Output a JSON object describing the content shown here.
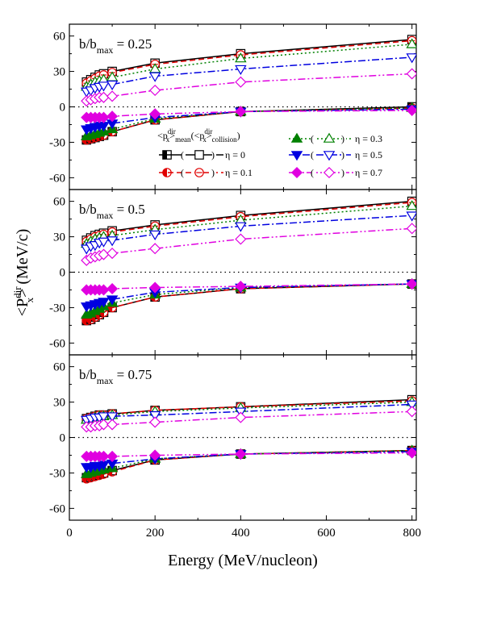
{
  "chart_data": {
    "type": "line",
    "xlabel": "Energy (MeV/nucleon)",
    "ylabel_main": "<P",
    "ylabel_sup": "dir",
    "ylabel_sub": "x",
    "ylabel_tail": "> (MeV/c)",
    "xlim": [
      0,
      810
    ],
    "ylim": [
      -70,
      70
    ],
    "x_ticks": [
      0,
      200,
      400,
      600,
      800
    ],
    "y_ticks": [
      -60,
      -30,
      0,
      30,
      60
    ],
    "x": [
      40,
      50,
      60,
      70,
      80,
      100,
      200,
      400,
      800
    ],
    "legend": {
      "mean_main": "<p",
      "mean_sup": "dir",
      "mean_sub_x": "x",
      "mean_tail": ">",
      "mean_sub_tail": "mean",
      "coll_open": "(<p",
      "coll_sup": "dir",
      "coll_sub_x": "x",
      "coll_tail": ">",
      "coll_sub_tail": "collision",
      "coll_close": ")",
      "series_labels": [
        "η = 0",
        "η = 0.1",
        "η = 0.3",
        "η = 0.5",
        "η = 0.7"
      ]
    },
    "series_styles": [
      {
        "color": "#000000",
        "marker": "square",
        "dash": ""
      },
      {
        "color": "#e00000",
        "marker": "circle",
        "dash": "7,4"
      },
      {
        "color": "#008000",
        "marker": "triangle",
        "dash": "2,3"
      },
      {
        "color": "#0000e0",
        "marker": "triangle-down",
        "dash": "9,3,2,3"
      },
      {
        "color": "#e000e0",
        "marker": "diamond",
        "dash": "9,3,2,3,2,3"
      }
    ],
    "panels": [
      {
        "label_pre": "b/b",
        "label_sub": "max",
        "label_post": " = 0.25",
        "collision": [
          [
            21,
            23,
            25,
            27,
            28,
            30,
            37,
            45,
            57
          ],
          [
            20,
            22,
            24,
            26,
            27,
            29,
            36,
            44,
            56
          ],
          [
            17,
            19,
            21,
            22,
            23,
            25,
            32,
            41,
            53
          ],
          [
            13,
            14,
            16,
            17,
            18,
            19,
            26,
            32,
            42
          ],
          [
            5,
            6,
            7,
            8,
            8,
            9,
            14,
            21,
            28
          ]
        ],
        "mean": [
          [
            -28,
            -27,
            -26,
            -25,
            -24,
            -21,
            -11,
            -4,
            0
          ],
          [
            -28,
            -27,
            -26,
            -25,
            -24,
            -21,
            -11,
            -4,
            -1
          ],
          [
            -25,
            -24,
            -23,
            -22,
            -21,
            -19,
            -10,
            -4,
            -1
          ],
          [
            -19,
            -18,
            -17,
            -16,
            -16,
            -14,
            -9,
            -4,
            -2
          ],
          [
            -9,
            -9,
            -9,
            -9,
            -9,
            -8,
            -6,
            -4,
            -3
          ]
        ]
      },
      {
        "label_pre": "b/b",
        "label_sub": "max",
        "label_post": " = 0.5",
        "collision": [
          [
            27,
            29,
            31,
            32,
            33,
            35,
            40,
            48,
            60
          ],
          [
            26,
            28,
            30,
            31,
            32,
            34,
            39,
            47,
            59
          ],
          [
            24,
            26,
            28,
            29,
            30,
            31,
            36,
            44,
            56
          ],
          [
            20,
            22,
            23,
            25,
            26,
            27,
            32,
            39,
            48
          ],
          [
            10,
            12,
            13,
            14,
            15,
            16,
            20,
            28,
            37
          ]
        ],
        "mean": [
          [
            -41,
            -40,
            -38,
            -36,
            -34,
            -30,
            -21,
            -14,
            -10
          ],
          [
            -41,
            -40,
            -38,
            -36,
            -34,
            -30,
            -21,
            -14,
            -10
          ],
          [
            -36,
            -35,
            -33,
            -31,
            -29,
            -26,
            -19,
            -13,
            -10
          ],
          [
            -29,
            -28,
            -27,
            -26,
            -25,
            -23,
            -17,
            -13,
            -10
          ],
          [
            -15,
            -15,
            -15,
            -15,
            -15,
            -14,
            -13,
            -12,
            -10
          ]
        ]
      },
      {
        "label_pre": "b/b",
        "label_sub": "max",
        "label_post": " = 0.75",
        "collision": [
          [
            16,
            17,
            18,
            19,
            19,
            20,
            23,
            26,
            32
          ],
          [
            16,
            17,
            18,
            19,
            19,
            20,
            23,
            26,
            31
          ],
          [
            15,
            16,
            17,
            18,
            18,
            19,
            22,
            25,
            30
          ],
          [
            15,
            16,
            17,
            17,
            18,
            18,
            19,
            22,
            28
          ],
          [
            9,
            9,
            10,
            10,
            11,
            11,
            13,
            17,
            22
          ]
        ],
        "mean": [
          [
            -34,
            -33,
            -32,
            -31,
            -30,
            -28,
            -19,
            -14,
            -11
          ],
          [
            -35,
            -34,
            -33,
            -32,
            -31,
            -29,
            -19,
            -14,
            -11
          ],
          [
            -31,
            -30,
            -29,
            -28,
            -27,
            -26,
            -18,
            -14,
            -11
          ],
          [
            -25,
            -25,
            -24,
            -24,
            -23,
            -22,
            -18,
            -14,
            -12
          ],
          [
            -16,
            -16,
            -16,
            -16,
            -16,
            -16,
            -15,
            -14,
            -13
          ]
        ]
      }
    ]
  }
}
